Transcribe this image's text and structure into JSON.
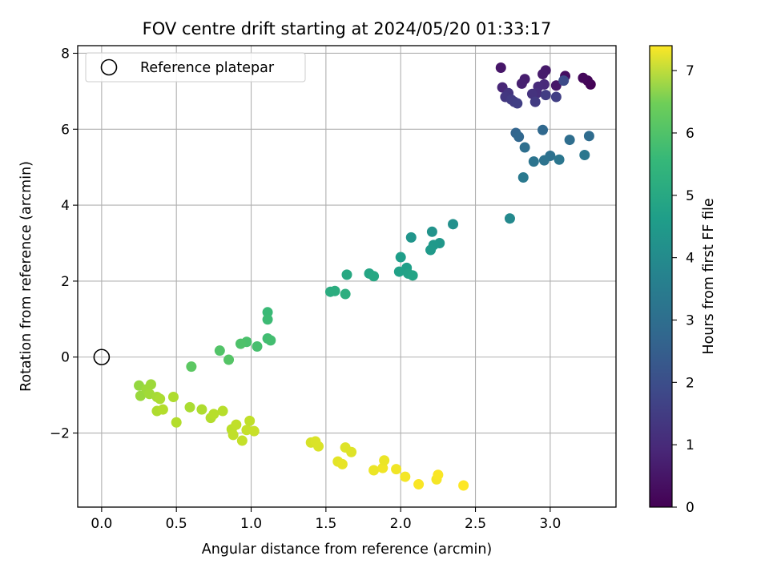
{
  "chart_data": {
    "type": "scatter",
    "title": "FOV centre drift starting at 2024/05/20 01:33:17",
    "xlabel": "Angular distance from reference (arcmin)",
    "ylabel": "Rotation from reference (arcmin)",
    "xlim": [
      -0.16,
      3.44
    ],
    "ylim": [
      -3.95,
      8.2
    ],
    "xticks": [
      0.0,
      0.5,
      1.0,
      1.5,
      2.0,
      2.5,
      3.0
    ],
    "xtick_labels": [
      "0.0",
      "0.5",
      "1.0",
      "1.5",
      "2.0",
      "2.5",
      "3.0"
    ],
    "yticks": [
      -2,
      0,
      2,
      4,
      6,
      8
    ],
    "ytick_labels": [
      "−2",
      "0",
      "2",
      "4",
      "6",
      "8"
    ],
    "grid": true,
    "legend": {
      "placement": "top-left",
      "entries": [
        "Reference platepar"
      ]
    },
    "colorbar": {
      "label": "Hours from first FF file",
      "colormap": "viridis",
      "range": [
        0,
        7.4
      ],
      "ticks": [
        0,
        1,
        2,
        3,
        4,
        5,
        6,
        7
      ],
      "tick_labels": [
        "0",
        "1",
        "2",
        "3",
        "4",
        "5",
        "6",
        "7"
      ]
    },
    "reference_point": {
      "x": 0.0,
      "y": 0.0
    },
    "points": [
      {
        "x": 3.27,
        "y": 7.18,
        "t": 0.05
      },
      {
        "x": 3.25,
        "y": 7.28,
        "t": 0.1
      },
      {
        "x": 3.22,
        "y": 7.35,
        "t": 0.15
      },
      {
        "x": 3.1,
        "y": 7.4,
        "t": 0.3
      },
      {
        "x": 3.04,
        "y": 7.15,
        "t": 0.45
      },
      {
        "x": 2.97,
        "y": 7.55,
        "t": 0.5
      },
      {
        "x": 2.95,
        "y": 7.45,
        "t": 0.55
      },
      {
        "x": 2.83,
        "y": 7.32,
        "t": 0.6
      },
      {
        "x": 2.81,
        "y": 7.2,
        "t": 0.65
      },
      {
        "x": 2.67,
        "y": 7.62,
        "t": 0.45
      },
      {
        "x": 2.68,
        "y": 7.1,
        "t": 0.8
      },
      {
        "x": 2.96,
        "y": 7.18,
        "t": 0.85
      },
      {
        "x": 2.92,
        "y": 7.12,
        "t": 0.9
      },
      {
        "x": 2.91,
        "y": 6.95,
        "t": 1.0
      },
      {
        "x": 2.88,
        "y": 6.93,
        "t": 1.1
      },
      {
        "x": 2.72,
        "y": 6.95,
        "t": 1.15
      },
      {
        "x": 2.7,
        "y": 6.85,
        "t": 1.2
      },
      {
        "x": 2.74,
        "y": 6.78,
        "t": 1.3
      },
      {
        "x": 2.76,
        "y": 6.72,
        "t": 1.35
      },
      {
        "x": 2.78,
        "y": 6.68,
        "t": 1.4
      },
      {
        "x": 2.9,
        "y": 6.72,
        "t": 1.3
      },
      {
        "x": 2.97,
        "y": 6.9,
        "t": 1.35
      },
      {
        "x": 3.04,
        "y": 6.85,
        "t": 1.4
      },
      {
        "x": 3.09,
        "y": 7.28,
        "t": 1.7
      },
      {
        "x": 2.77,
        "y": 5.9,
        "t": 2.4
      },
      {
        "x": 2.79,
        "y": 5.8,
        "t": 2.45
      },
      {
        "x": 2.95,
        "y": 5.98,
        "t": 2.5
      },
      {
        "x": 3.26,
        "y": 5.82,
        "t": 2.6
      },
      {
        "x": 3.13,
        "y": 5.72,
        "t": 2.65
      },
      {
        "x": 2.83,
        "y": 5.52,
        "t": 2.7
      },
      {
        "x": 3.0,
        "y": 5.3,
        "t": 2.75
      },
      {
        "x": 2.96,
        "y": 5.18,
        "t": 2.8
      },
      {
        "x": 2.89,
        "y": 5.15,
        "t": 2.85
      },
      {
        "x": 3.06,
        "y": 5.2,
        "t": 2.9
      },
      {
        "x": 3.23,
        "y": 5.32,
        "t": 2.95
      },
      {
        "x": 2.82,
        "y": 4.73,
        "t": 3.0
      },
      {
        "x": 2.73,
        "y": 3.65,
        "t": 3.5
      },
      {
        "x": 2.35,
        "y": 3.5,
        "t": 3.7
      },
      {
        "x": 2.21,
        "y": 3.3,
        "t": 3.8
      },
      {
        "x": 2.07,
        "y": 3.15,
        "t": 3.85
      },
      {
        "x": 2.26,
        "y": 3.0,
        "t": 3.9
      },
      {
        "x": 2.22,
        "y": 2.95,
        "t": 3.95
      },
      {
        "x": 2.2,
        "y": 2.82,
        "t": 4.0
      },
      {
        "x": 2.0,
        "y": 2.63,
        "t": 4.1
      },
      {
        "x": 2.04,
        "y": 2.35,
        "t": 4.15
      },
      {
        "x": 1.99,
        "y": 2.25,
        "t": 4.2
      },
      {
        "x": 2.05,
        "y": 2.2,
        "t": 4.25
      },
      {
        "x": 2.08,
        "y": 2.15,
        "t": 4.3
      },
      {
        "x": 1.79,
        "y": 2.2,
        "t": 4.35
      },
      {
        "x": 1.82,
        "y": 2.13,
        "t": 4.4
      },
      {
        "x": 1.64,
        "y": 2.17,
        "t": 4.45
      },
      {
        "x": 1.53,
        "y": 1.72,
        "t": 4.55
      },
      {
        "x": 1.56,
        "y": 1.74,
        "t": 4.6
      },
      {
        "x": 1.63,
        "y": 1.66,
        "t": 4.65
      },
      {
        "x": 1.11,
        "y": 1.18,
        "t": 5.0
      },
      {
        "x": 1.11,
        "y": 0.99,
        "t": 5.05
      },
      {
        "x": 1.11,
        "y": 0.49,
        "t": 5.1
      },
      {
        "x": 1.13,
        "y": 0.44,
        "t": 5.15
      },
      {
        "x": 1.04,
        "y": 0.28,
        "t": 5.2
      },
      {
        "x": 0.97,
        "y": 0.4,
        "t": 5.25
      },
      {
        "x": 0.93,
        "y": 0.35,
        "t": 5.3
      },
      {
        "x": 0.79,
        "y": 0.17,
        "t": 5.35
      },
      {
        "x": 0.85,
        "y": -0.07,
        "t": 5.4
      },
      {
        "x": 0.6,
        "y": -0.25,
        "t": 5.5
      },
      {
        "x": 0.25,
        "y": -0.75,
        "t": 6.2
      },
      {
        "x": 0.26,
        "y": -1.02,
        "t": 6.25
      },
      {
        "x": 0.3,
        "y": -0.85,
        "t": 6.3
      },
      {
        "x": 0.33,
        "y": -0.72,
        "t": 6.3
      },
      {
        "x": 0.32,
        "y": -0.97,
        "t": 6.35
      },
      {
        "x": 0.37,
        "y": -1.05,
        "t": 6.4
      },
      {
        "x": 0.39,
        "y": -1.1,
        "t": 6.45
      },
      {
        "x": 0.37,
        "y": -1.42,
        "t": 6.5
      },
      {
        "x": 0.41,
        "y": -1.38,
        "t": 6.55
      },
      {
        "x": 0.48,
        "y": -1.05,
        "t": 6.5
      },
      {
        "x": 0.5,
        "y": -1.72,
        "t": 6.55
      },
      {
        "x": 0.59,
        "y": -1.32,
        "t": 6.45
      },
      {
        "x": 0.67,
        "y": -1.38,
        "t": 6.5
      },
      {
        "x": 0.73,
        "y": -1.6,
        "t": 6.55
      },
      {
        "x": 0.75,
        "y": -1.5,
        "t": 6.6
      },
      {
        "x": 0.81,
        "y": -1.42,
        "t": 6.6
      },
      {
        "x": 0.87,
        "y": -1.9,
        "t": 6.65
      },
      {
        "x": 0.88,
        "y": -2.05,
        "t": 6.7
      },
      {
        "x": 0.9,
        "y": -1.78,
        "t": 6.7
      },
      {
        "x": 0.94,
        "y": -2.2,
        "t": 6.75
      },
      {
        "x": 0.97,
        "y": -1.92,
        "t": 6.75
      },
      {
        "x": 0.99,
        "y": -1.68,
        "t": 6.7
      },
      {
        "x": 1.02,
        "y": -1.95,
        "t": 6.8
      },
      {
        "x": 1.4,
        "y": -2.25,
        "t": 6.95
      },
      {
        "x": 1.43,
        "y": -2.22,
        "t": 7.0
      },
      {
        "x": 1.45,
        "y": -2.35,
        "t": 7.0
      },
      {
        "x": 1.63,
        "y": -2.38,
        "t": 7.05
      },
      {
        "x": 1.67,
        "y": -2.5,
        "t": 7.05
      },
      {
        "x": 1.58,
        "y": -2.75,
        "t": 7.1
      },
      {
        "x": 1.61,
        "y": -2.82,
        "t": 7.15
      },
      {
        "x": 1.82,
        "y": -2.98,
        "t": 7.2
      },
      {
        "x": 1.88,
        "y": -2.92,
        "t": 7.25
      },
      {
        "x": 1.89,
        "y": -2.72,
        "t": 7.2
      },
      {
        "x": 1.97,
        "y": -2.95,
        "t": 7.25
      },
      {
        "x": 2.03,
        "y": -3.15,
        "t": 7.3
      },
      {
        "x": 2.12,
        "y": -3.35,
        "t": 7.35
      },
      {
        "x": 2.24,
        "y": -3.22,
        "t": 7.3
      },
      {
        "x": 2.25,
        "y": -3.1,
        "t": 7.35
      },
      {
        "x": 2.42,
        "y": -3.38,
        "t": 7.4
      }
    ]
  }
}
